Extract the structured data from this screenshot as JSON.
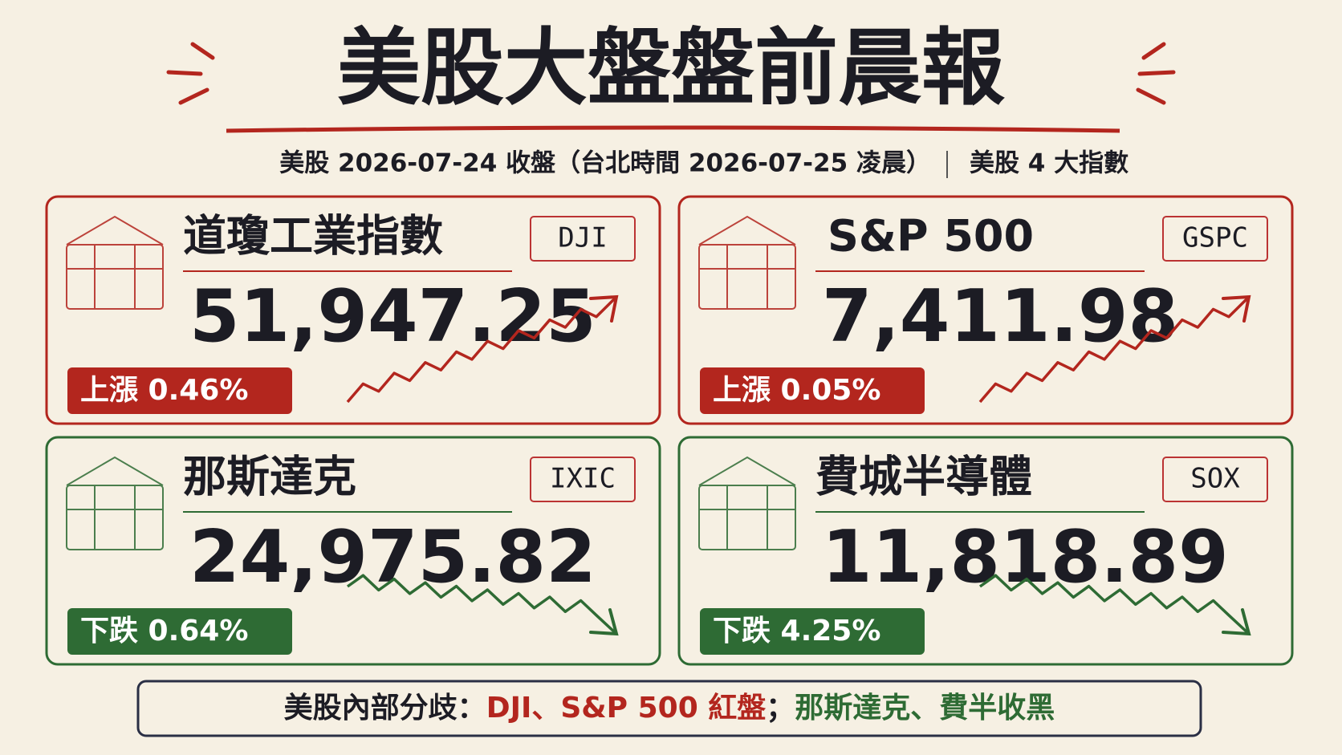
{
  "header": {
    "title": "美股大盤盤前晨報",
    "subtitle": "美股 2026-07-24 收盤（台北時間 2026-07-25 凌晨）",
    "subtitle_right": "美股 4 大指數"
  },
  "cards": [
    {
      "name": "道瓊工業指數",
      "code": "DJI",
      "value": "51,947.25",
      "change": "上漲 0.46%",
      "color": "#b3261e",
      "direction": "up"
    },
    {
      "name": "S&P 500",
      "code": "GSPC",
      "value": "7,411.98",
      "change": "上漲 0.05%",
      "color": "#b3261e",
      "direction": "up"
    },
    {
      "name": "那斯達克",
      "code": "IXIC",
      "value": "24,975.82",
      "change": "下跌 0.64%",
      "color": "#2e6b34",
      "direction": "down"
    },
    {
      "name": "費城半導體",
      "code": "SOX",
      "value": "11,818.89",
      "change": "下跌 4.25%",
      "color": "#2e6b34",
      "direction": "down"
    }
  ],
  "footer": {
    "lead": "美股內部分歧：",
    "red": "DJI、S&P 500 紅盤",
    "separator": "；",
    "green": "那斯達克、費半收黑"
  }
}
